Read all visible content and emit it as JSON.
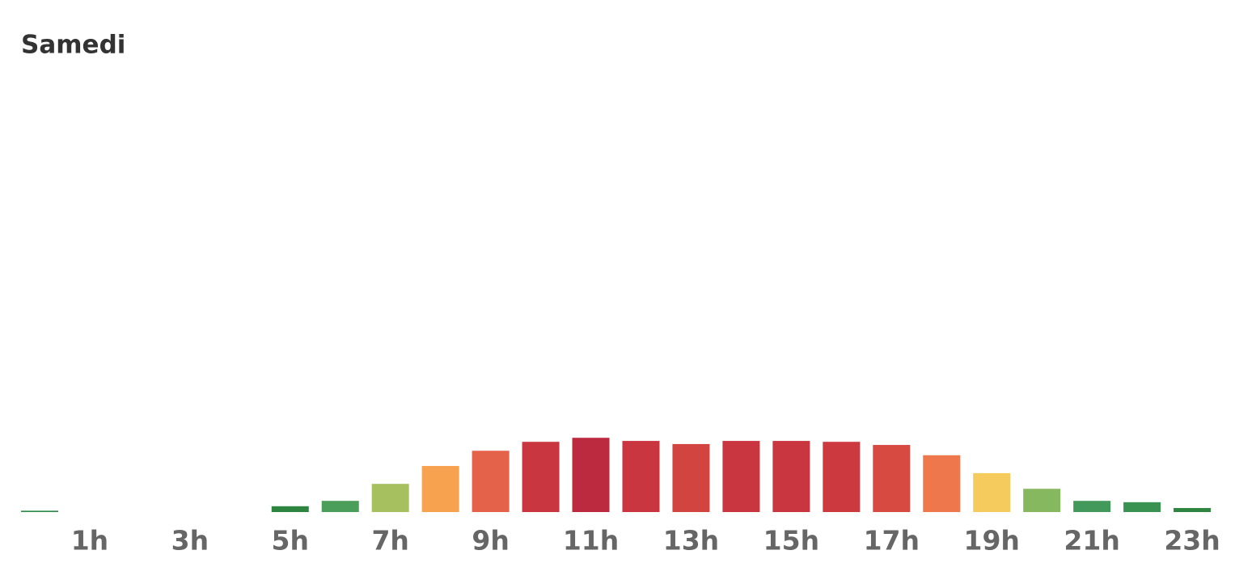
{
  "chart_data": {
    "type": "bar",
    "title": "Samedi",
    "categories": [
      null,
      "1h",
      null,
      "3h",
      null,
      "5h",
      null,
      "7h",
      null,
      "9h",
      null,
      "11h",
      null,
      "13h",
      null,
      "15h",
      null,
      "17h",
      null,
      "19h",
      null,
      "21h",
      null,
      "23h"
    ],
    "values": [
      0.3,
      0,
      0,
      0,
      0,
      1.3,
      2.5,
      6.3,
      10.3,
      13.7,
      15.7,
      16.6,
      15.9,
      15.2,
      15.9,
      15.9,
      15.7,
      15.0,
      12.7,
      8.7,
      5.2,
      2.5,
      2.2,
      0.9
    ],
    "colors": [
      "#2e8b4a",
      "#2e8b4a",
      "#2e8b4a",
      "#2e8b4a",
      "#2e8b4a",
      "#2e8540",
      "#4a9e5a",
      "#a6c060",
      "#f6a24e",
      "#e4614a",
      "#c9363f",
      "#bb2a3e",
      "#c9363f",
      "#d2443f",
      "#c9363f",
      "#c9363f",
      "#cc3a40",
      "#d64a42",
      "#ee774b",
      "#f5cb5e",
      "#86b860",
      "#43995a",
      "#3a9250",
      "#2e8540"
    ],
    "ylim": [
      0,
      100
    ]
  }
}
